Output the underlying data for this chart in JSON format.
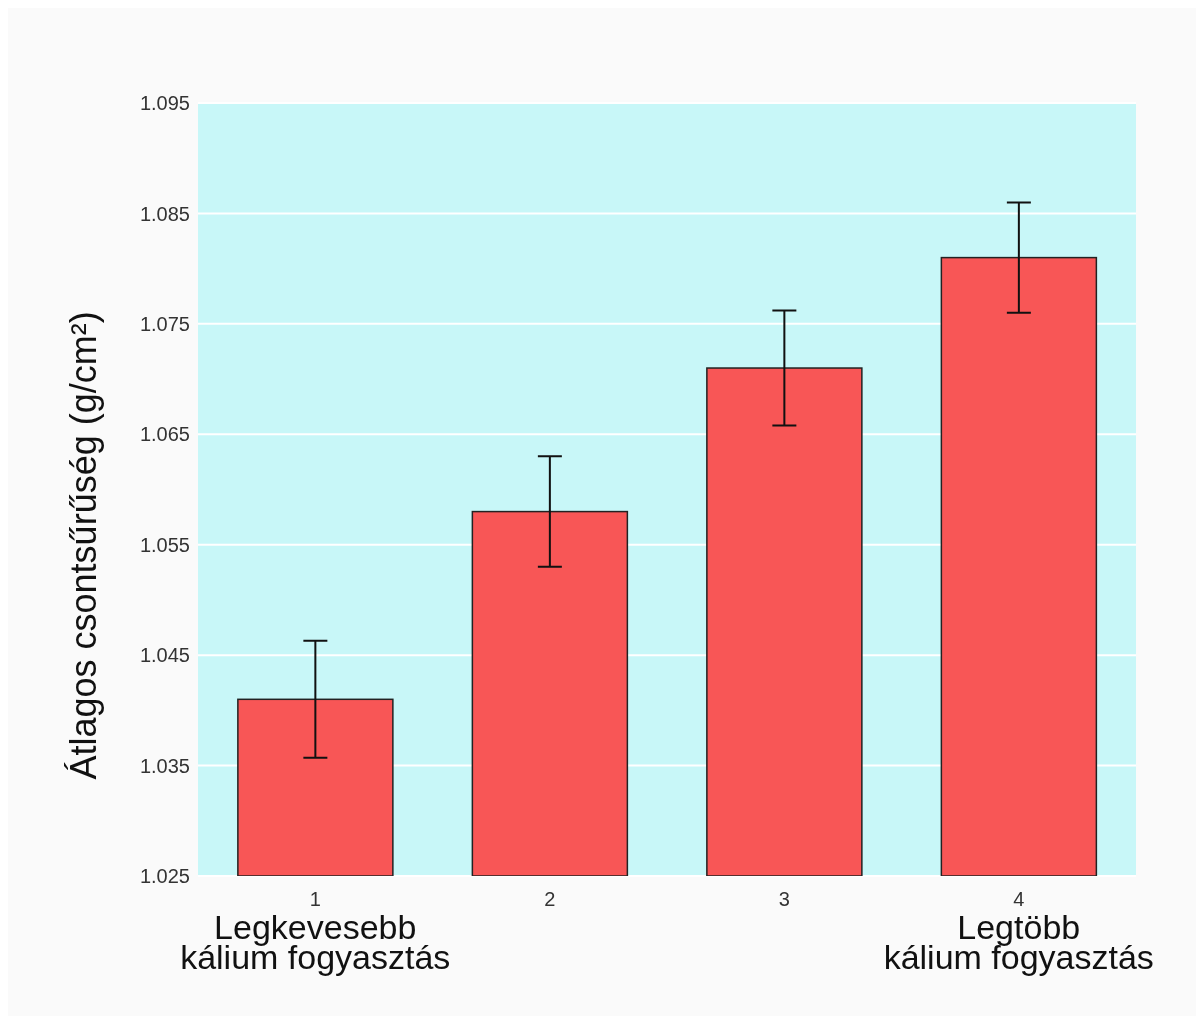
{
  "chart_data": {
    "type": "bar",
    "ylabel": "Átlagos csontsűrűség (g/cm²)",
    "categories": [
      "1",
      "2",
      "3",
      "4"
    ],
    "values": [
      1.041,
      1.058,
      1.071,
      1.081
    ],
    "errors": [
      0.0053,
      0.005,
      0.0052,
      0.005
    ],
    "color": "#f85656",
    "ylim": [
      1.025,
      1.095
    ],
    "yticks": [
      1.025,
      1.035,
      1.045,
      1.055,
      1.065,
      1.075,
      1.085,
      1.095
    ],
    "grid": "y",
    "annotations": [
      "Legkevesebb\nkálium fogyasztás",
      "Legtöbb\nkálium fogyasztás"
    ]
  }
}
